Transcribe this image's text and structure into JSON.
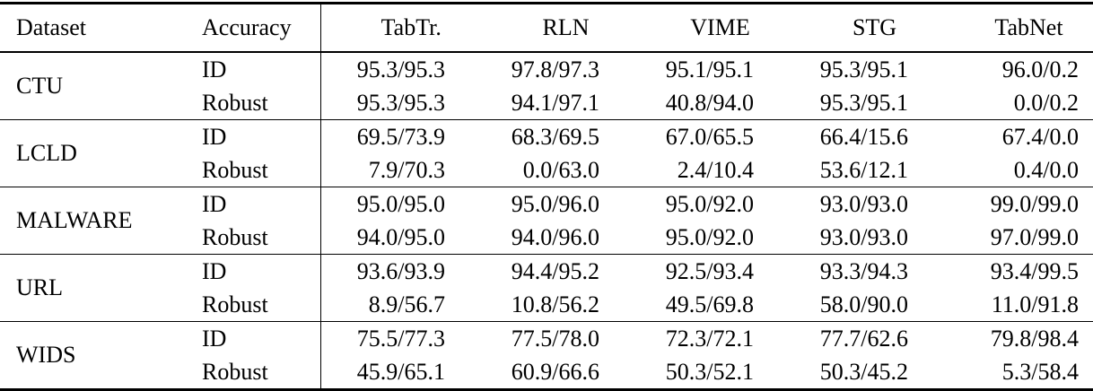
{
  "colors": {
    "text": "#000000",
    "background": "#ffffff",
    "rule": "#000000"
  },
  "table": {
    "columns": [
      "Dataset",
      "Accuracy",
      "TabTr.",
      "RLN",
      "VIME",
      "STG",
      "TabNet"
    ],
    "groups": [
      {
        "dataset": "CTU",
        "rows": [
          {
            "accuracy": "ID",
            "values": [
              "95.3/95.3",
              "97.8/97.3",
              "95.1/95.1",
              "95.3/95.1",
              "96.0/0.2"
            ]
          },
          {
            "accuracy": "Robust",
            "values": [
              "95.3/95.3",
              "94.1/97.1",
              "40.8/94.0",
              "95.3/95.1",
              "0.0/0.2"
            ]
          }
        ]
      },
      {
        "dataset": "LCLD",
        "rows": [
          {
            "accuracy": "ID",
            "values": [
              "69.5/73.9",
              "68.3/69.5",
              "67.0/65.5",
              "66.4/15.6",
              "67.4/0.0"
            ]
          },
          {
            "accuracy": "Robust",
            "values": [
              "7.9/70.3",
              "0.0/63.0",
              "2.4/10.4",
              "53.6/12.1",
              "0.4/0.0"
            ]
          }
        ]
      },
      {
        "dataset": "MALWARE",
        "rows": [
          {
            "accuracy": "ID",
            "values": [
              "95.0/95.0",
              "95.0/96.0",
              "95.0/92.0",
              "93.0/93.0",
              "99.0/99.0"
            ]
          },
          {
            "accuracy": "Robust",
            "values": [
              "94.0/95.0",
              "94.0/96.0",
              "95.0/92.0",
              "93.0/93.0",
              "97.0/99.0"
            ]
          }
        ]
      },
      {
        "dataset": "URL",
        "rows": [
          {
            "accuracy": "ID",
            "values": [
              "93.6/93.9",
              "94.4/95.2",
              "92.5/93.4",
              "93.3/94.3",
              "93.4/99.5"
            ]
          },
          {
            "accuracy": "Robust",
            "values": [
              "8.9/56.7",
              "10.8/56.2",
              "49.5/69.8",
              "58.0/90.0",
              "11.0/91.8"
            ]
          }
        ]
      },
      {
        "dataset": "WIDS",
        "rows": [
          {
            "accuracy": "ID",
            "values": [
              "75.5/77.3",
              "77.5/78.0",
              "72.3/72.1",
              "77.7/62.6",
              "79.8/98.4"
            ]
          },
          {
            "accuracy": "Robust",
            "values": [
              "45.9/65.1",
              "60.9/66.6",
              "50.3/52.1",
              "50.3/45.2",
              "5.3/58.4"
            ]
          }
        ]
      }
    ]
  }
}
